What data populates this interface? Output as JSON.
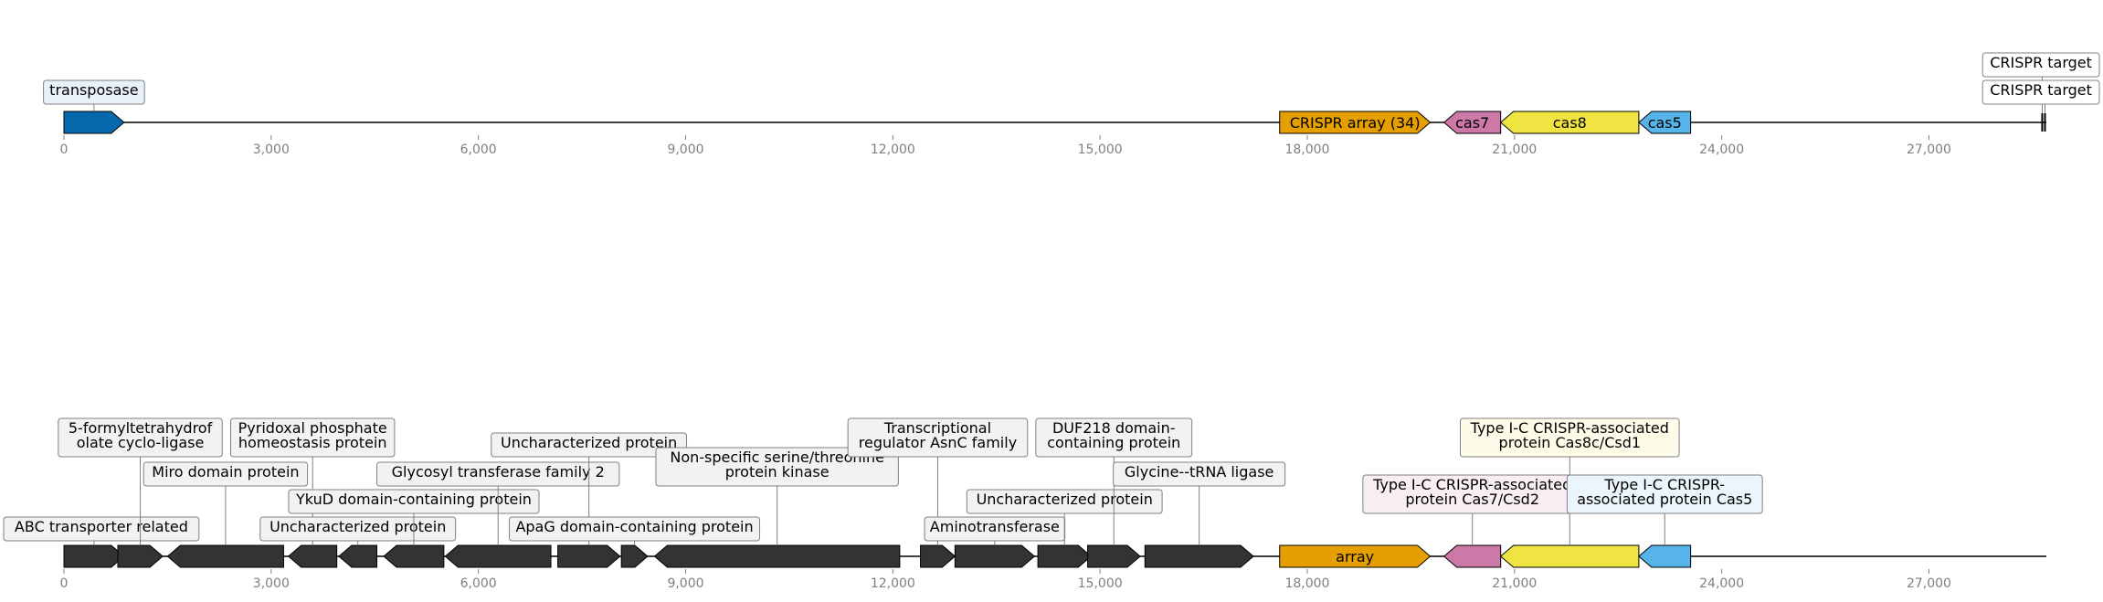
{
  "colors": {
    "transposase": "#0868ac",
    "crispr_array": "#e69f00",
    "cas7": "#cc79a7",
    "cas8": "#f0e442",
    "cas5": "#56b4e9",
    "other_gene": "#333333",
    "backbone": "#000000",
    "tick": "#808080"
  },
  "axis": {
    "min": 0,
    "max": 28700,
    "ticks": [
      0,
      3000,
      6000,
      9000,
      12000,
      15000,
      18000,
      21000,
      24000,
      27000
    ],
    "tick_labels": [
      "0",
      "3,000",
      "6,000",
      "9,000",
      "12,000",
      "15,000",
      "18,000",
      "21,000",
      "24,000",
      "27,000"
    ]
  },
  "top_track": {
    "end": 28700,
    "features": [
      {
        "start": 0,
        "end": 870,
        "strand": 1,
        "color": "transposase",
        "label": "",
        "callout": "transposase",
        "callout_bg": "#e8f1fa",
        "callout_level": 0
      },
      {
        "start": 17600,
        "end": 19780,
        "strand": 0,
        "color": "crispr_array",
        "label": "CRISPR array (34)",
        "callout": "",
        "callout_bg": "",
        "callout_level": 0
      },
      {
        "start": 19980,
        "end": 20800,
        "strand": -1,
        "color": "cas7",
        "label": "cas7",
        "callout": "",
        "callout_bg": "",
        "callout_level": 0
      },
      {
        "start": 20800,
        "end": 22800,
        "strand": -1,
        "color": "cas8",
        "label": "cas8",
        "callout": "",
        "callout_bg": "",
        "callout_level": 0
      },
      {
        "start": 22800,
        "end": 23550,
        "strand": -1,
        "color": "cas5",
        "label": "cas5",
        "callout": "",
        "callout_bg": "",
        "callout_level": 0
      }
    ],
    "targets": [
      {
        "pos": 28640,
        "callout": "CRISPR target",
        "callout_level": 1
      },
      {
        "pos": 28680,
        "callout": "CRISPR target",
        "callout_level": 0
      }
    ]
  },
  "bottom_track": {
    "end": 28700,
    "features": [
      {
        "start": 0,
        "end": 870,
        "strand": 1,
        "color": "other_gene",
        "label": "",
        "callout": "ABC transporter related",
        "callout_bg": "#f2f2f2",
        "callout_level": 0
      },
      {
        "start": 780,
        "end": 1430,
        "strand": 1,
        "color": "other_gene",
        "label": "",
        "callout": "5-formyltetrahydrof\nolate cyclo-ligase",
        "callout_bg": "#f2f2f2",
        "callout_level": 3
      },
      {
        "start": 1500,
        "end": 3180,
        "strand": -1,
        "color": "other_gene",
        "label": "",
        "callout": "Miro domain protein",
        "callout_bg": "#f2f2f2",
        "callout_level": 2
      },
      {
        "start": 3250,
        "end": 3950,
        "strand": -1,
        "color": "other_gene",
        "label": "",
        "callout": "Pyridoxal phosphate\nhomeostasis protein",
        "callout_bg": "#f2f2f2",
        "callout_level": 3
      },
      {
        "start": 3980,
        "end": 4530,
        "strand": -1,
        "color": "other_gene",
        "label": "",
        "callout": "Uncharacterized protein",
        "callout_bg": "#f2f2f2",
        "callout_level": 0
      },
      {
        "start": 4630,
        "end": 5500,
        "strand": -1,
        "color": "other_gene",
        "label": "",
        "callout": "YkuD domain-containing protein",
        "callout_bg": "#f2f2f2",
        "callout_level": 1
      },
      {
        "start": 5520,
        "end": 7050,
        "strand": -1,
        "color": "other_gene",
        "label": "",
        "callout": "Glycosyl transferase family 2",
        "callout_bg": "#f2f2f2",
        "callout_level": 2
      },
      {
        "start": 7150,
        "end": 8050,
        "strand": 1,
        "color": "other_gene",
        "label": "",
        "callout": "Uncharacterized protein",
        "callout_bg": "#f2f2f2",
        "callout_level": 3
      },
      {
        "start": 8070,
        "end": 8450,
        "strand": 1,
        "color": "other_gene",
        "label": "",
        "callout": "ApaG domain-containing protein",
        "callout_bg": "#f2f2f2",
        "callout_level": 0
      },
      {
        "start": 8550,
        "end": 12100,
        "strand": -1,
        "color": "other_gene",
        "label": "",
        "callout": "Non-specific serine/threonine\nprotein kinase",
        "callout_bg": "#f2f2f2",
        "callout_level": 2
      },
      {
        "start": 12400,
        "end": 12900,
        "strand": 1,
        "color": "other_gene",
        "label": "",
        "callout": "Transcriptional\nregulator AsnC family",
        "callout_bg": "#f2f2f2",
        "callout_level": 3
      },
      {
        "start": 12900,
        "end": 14050,
        "strand": 1,
        "color": "other_gene",
        "label": "",
        "callout": "Aminotransferase",
        "callout_bg": "#f2f2f2",
        "callout_level": 0
      },
      {
        "start": 14100,
        "end": 14870,
        "strand": 1,
        "color": "other_gene",
        "label": "",
        "callout": "Uncharacterized protein",
        "callout_bg": "#f2f2f2",
        "callout_level": 1
      },
      {
        "start": 14820,
        "end": 15580,
        "strand": 1,
        "color": "other_gene",
        "label": "",
        "callout": "DUF218 domain-\ncontaining protein",
        "callout_bg": "#f2f2f2",
        "callout_level": 3
      },
      {
        "start": 15650,
        "end": 17220,
        "strand": 1,
        "color": "other_gene",
        "label": "",
        "callout": "Glycine--tRNA ligase",
        "callout_bg": "#f2f2f2",
        "callout_level": 2
      },
      {
        "start": 17600,
        "end": 19780,
        "strand": 0,
        "color": "crispr_array",
        "label": "array",
        "callout": "",
        "callout_bg": "",
        "callout_level": 0
      },
      {
        "start": 19980,
        "end": 20800,
        "strand": -1,
        "color": "cas7",
        "label": "",
        "callout": "Type I-C CRISPR-associated\nprotein Cas7/Csd2",
        "callout_bg": "#f9eef4",
        "callout_level": 1
      },
      {
        "start": 20800,
        "end": 22800,
        "strand": -1,
        "color": "cas8",
        "label": "",
        "callout": "Type I-C CRISPR-associated\nprotein Cas8c/Csd1",
        "callout_bg": "#fefce8",
        "callout_level": 3
      },
      {
        "start": 22800,
        "end": 23550,
        "strand": -1,
        "color": "cas5",
        "label": "",
        "callout": "Type I-C CRISPR-\nassociated protein Cas5",
        "callout_bg": "#eaf5fc",
        "callout_level": 1
      }
    ]
  }
}
